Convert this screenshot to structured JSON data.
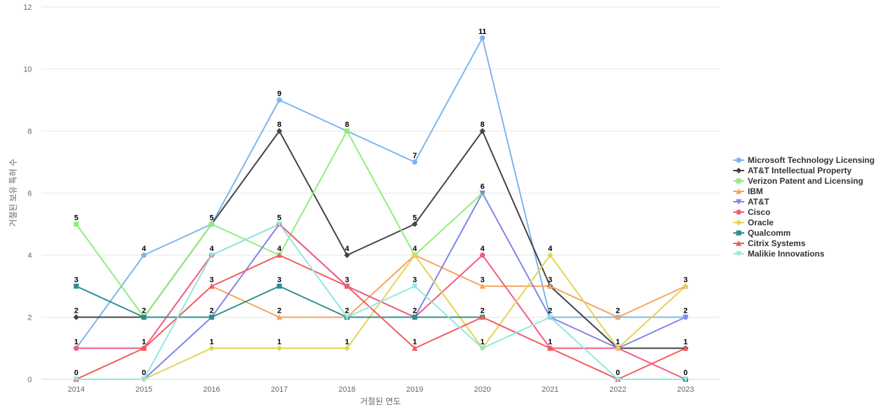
{
  "chart_data": {
    "type": "line",
    "title": "",
    "xlabel": "거절된 연도",
    "ylabel": "거절된 보유 특허 수",
    "categories": [
      "2014",
      "2015",
      "2016",
      "2017",
      "2018",
      "2019",
      "2020",
      "2021",
      "2022",
      "2023"
    ],
    "ylim": [
      0,
      12
    ],
    "yticks": [
      0,
      2,
      4,
      6,
      8,
      10,
      12
    ],
    "grid": true,
    "legend_position": "right",
    "series": [
      {
        "name": "Microsoft Technology Licensing",
        "color": "#7cb5ec",
        "marker": "circle",
        "values": [
          1,
          4,
          5,
          9,
          8,
          7,
          11,
          2,
          2,
          2
        ]
      },
      {
        "name": "AT&T Intellectual Property",
        "color": "#434348",
        "marker": "diamond",
        "values": [
          2,
          2,
          5,
          8,
          4,
          5,
          8,
          3,
          1,
          1
        ]
      },
      {
        "name": "Verizon Patent and Licensing",
        "color": "#90ed7d",
        "marker": "square",
        "values": [
          5,
          2,
          5,
          4,
          8,
          4,
          6,
          null,
          null,
          null
        ]
      },
      {
        "name": "IBM",
        "color": "#f7a35c",
        "marker": "triangle",
        "values": [
          null,
          null,
          3,
          2,
          2,
          4,
          3,
          3,
          2,
          3
        ]
      },
      {
        "name": "AT&T",
        "color": "#8085e9",
        "marker": "triangle-down",
        "values": [
          0,
          0,
          2,
          5,
          3,
          2,
          6,
          2,
          1,
          2
        ]
      },
      {
        "name": "Cisco",
        "color": "#f15c80",
        "marker": "circle",
        "values": [
          1,
          1,
          4,
          5,
          3,
          2,
          4,
          1,
          1,
          0
        ]
      },
      {
        "name": "Oracle",
        "color": "#e4d354",
        "marker": "diamond",
        "values": [
          0,
          0,
          1,
          1,
          1,
          4,
          1,
          4,
          1,
          3
        ]
      },
      {
        "name": "Qualcomm",
        "color": "#2b908f",
        "marker": "square",
        "values": [
          3,
          2,
          2,
          3,
          2,
          2,
          2,
          null,
          null,
          0
        ]
      },
      {
        "name": "Citrix Systems",
        "color": "#f45b5b",
        "marker": "triangle",
        "values": [
          0,
          1,
          3,
          4,
          3,
          1,
          2,
          1,
          0,
          1
        ]
      },
      {
        "name": "Malikie Innovations",
        "color": "#91e8e1",
        "marker": "triangle-down",
        "values": [
          0,
          0,
          4,
          5,
          2,
          3,
          1,
          2,
          0,
          0
        ]
      }
    ],
    "data_labels": [
      {
        "x": "2014",
        "y": 5,
        "text": "5"
      },
      {
        "x": "2014",
        "y": 3,
        "text": "3"
      },
      {
        "x": "2014",
        "y": 2,
        "text": "2"
      },
      {
        "x": "2014",
        "y": 1,
        "text": "1"
      },
      {
        "x": "2014",
        "y": 0,
        "text": "0"
      },
      {
        "x": "2015",
        "y": 4,
        "text": "4"
      },
      {
        "x": "2015",
        "y": 2,
        "text": "2"
      },
      {
        "x": "2015",
        "y": 1,
        "text": "1"
      },
      {
        "x": "2015",
        "y": 0,
        "text": "0"
      },
      {
        "x": "2016",
        "y": 5,
        "text": "5"
      },
      {
        "x": "2016",
        "y": 4,
        "text": "4"
      },
      {
        "x": "2016",
        "y": 3,
        "text": "3"
      },
      {
        "x": "2016",
        "y": 2,
        "text": "2"
      },
      {
        "x": "2016",
        "y": 1,
        "text": "1"
      },
      {
        "x": "2017",
        "y": 9,
        "text": "9"
      },
      {
        "x": "2017",
        "y": 8,
        "text": "8"
      },
      {
        "x": "2017",
        "y": 5,
        "text": "5"
      },
      {
        "x": "2017",
        "y": 4,
        "text": "4"
      },
      {
        "x": "2017",
        "y": 3,
        "text": "3"
      },
      {
        "x": "2017",
        "y": 2,
        "text": "2"
      },
      {
        "x": "2017",
        "y": 1,
        "text": "1"
      },
      {
        "x": "2018",
        "y": 8,
        "text": "8"
      },
      {
        "x": "2018",
        "y": 4,
        "text": "4"
      },
      {
        "x": "2018",
        "y": 3,
        "text": "3"
      },
      {
        "x": "2018",
        "y": 2,
        "text": "2"
      },
      {
        "x": "2018",
        "y": 1,
        "text": "1"
      },
      {
        "x": "2019",
        "y": 7,
        "text": "7"
      },
      {
        "x": "2019",
        "y": 5,
        "text": "5"
      },
      {
        "x": "2019",
        "y": 4,
        "text": "4"
      },
      {
        "x": "2019",
        "y": 3,
        "text": "3"
      },
      {
        "x": "2019",
        "y": 2,
        "text": "2"
      },
      {
        "x": "2019",
        "y": 1,
        "text": "1"
      },
      {
        "x": "2020",
        "y": 11,
        "text": "11"
      },
      {
        "x": "2020",
        "y": 8,
        "text": "8"
      },
      {
        "x": "2020",
        "y": 6,
        "text": "6"
      },
      {
        "x": "2020",
        "y": 4,
        "text": "4"
      },
      {
        "x": "2020",
        "y": 3,
        "text": "3"
      },
      {
        "x": "2020",
        "y": 2,
        "text": "2"
      },
      {
        "x": "2020",
        "y": 1,
        "text": "1"
      },
      {
        "x": "2021",
        "y": 4,
        "text": "4"
      },
      {
        "x": "2021",
        "y": 3,
        "text": "3"
      },
      {
        "x": "2021",
        "y": 2,
        "text": "2"
      },
      {
        "x": "2021",
        "y": 1,
        "text": "1"
      },
      {
        "x": "2022",
        "y": 2,
        "text": "2"
      },
      {
        "x": "2022",
        "y": 1,
        "text": "1"
      },
      {
        "x": "2022",
        "y": 0,
        "text": "0"
      },
      {
        "x": "2023",
        "y": 3,
        "text": "3"
      },
      {
        "x": "2023",
        "y": 2,
        "text": "2"
      },
      {
        "x": "2023",
        "y": 1,
        "text": "1"
      },
      {
        "x": "2023",
        "y": 0,
        "text": "0"
      }
    ]
  }
}
